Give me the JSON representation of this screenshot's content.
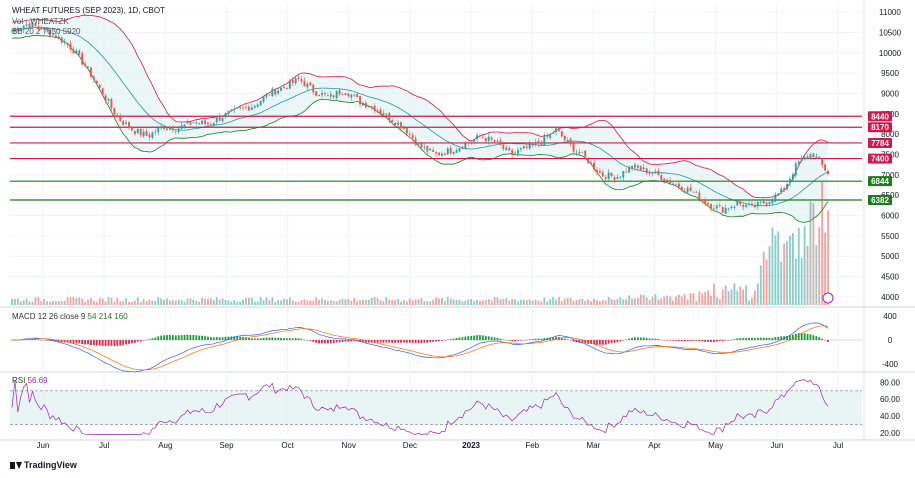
{
  "chart_data": {
    "type": "candlestick",
    "title": "WHEAT FUTURES (SEP 2023), 1D, CBOT",
    "main_legend_label": "Vol · WHEATZK",
    "bb_label": "BB 20 2 7650 5920",
    "x_tick_labels": [
      "Jun",
      "Jul",
      "Aug",
      "Sep",
      "Oct",
      "Nov",
      "Dec",
      "2023",
      "Feb",
      "Mar",
      "Apr",
      "May",
      "Jun",
      "Jul"
    ],
    "price_axis": {
      "ticks": [
        "11000",
        "10500",
        "10000",
        "9500",
        "9000",
        "8500",
        "8000",
        "7500",
        "7000",
        "6500",
        "6000",
        "5500",
        "5000",
        "4500",
        "4000"
      ],
      "ylim": [
        3800,
        11200
      ]
    },
    "price_path_closes": [
      10550,
      10700,
      10600,
      10400,
      10100,
      9600,
      9000,
      8400,
      8100,
      7950,
      8200,
      8150,
      8300,
      8250,
      8450,
      8600,
      8700,
      9000,
      9150,
      9350,
      9050,
      8900,
      9100,
      8800,
      8650,
      8400,
      8150,
      7700,
      7500,
      7600,
      7750,
      7950,
      7800,
      7500,
      7650,
      7800,
      8100,
      7700,
      7400,
      7000,
      6950,
      7200,
      7100,
      6950,
      6750,
      6600,
      6300,
      6150,
      6300,
      6200,
      6350,
      6600,
      7300,
      7520,
      7050
    ],
    "horizontal_levels": [
      {
        "value": 8440,
        "label": "8440",
        "color": "#d5184c"
      },
      {
        "value": 8170,
        "label": "8170",
        "color": "#d5184c"
      },
      {
        "value": 7784,
        "label": "7784",
        "color": "#d5184c"
      },
      {
        "value": 7400,
        "label": "7400",
        "color": "#d5184c"
      },
      {
        "value": 6844,
        "label": "6844",
        "color": "#1a7d1a"
      },
      {
        "value": 6382,
        "label": "6382",
        "color": "#1a7d1a"
      }
    ],
    "macd": {
      "label": "MACD 12 26 close 9",
      "values_label": "54 214 160",
      "ticks": [
        "400",
        "0",
        "-400"
      ],
      "ylim": [
        -500,
        500
      ]
    },
    "rsi": {
      "label": "RSI",
      "value_label": "56.69",
      "ticks": [
        "80.00",
        "60.00",
        "40.00",
        "20.00"
      ],
      "ylim": [
        15,
        90
      ],
      "band": [
        30,
        70
      ]
    },
    "grid": true,
    "colors": {
      "up": "#26a69a",
      "down": "#ef5350",
      "bb_upper": "#d5184c",
      "bb_lower": "#1a7d1a",
      "bb_basis": "#2196a6",
      "bb_fill": "#e3f2f2",
      "macd_line": "#2962ff",
      "signal_line": "#ff6d00",
      "rsi_line": "#9c27b0"
    }
  },
  "branding": {
    "logo_text": "TradingView"
  }
}
